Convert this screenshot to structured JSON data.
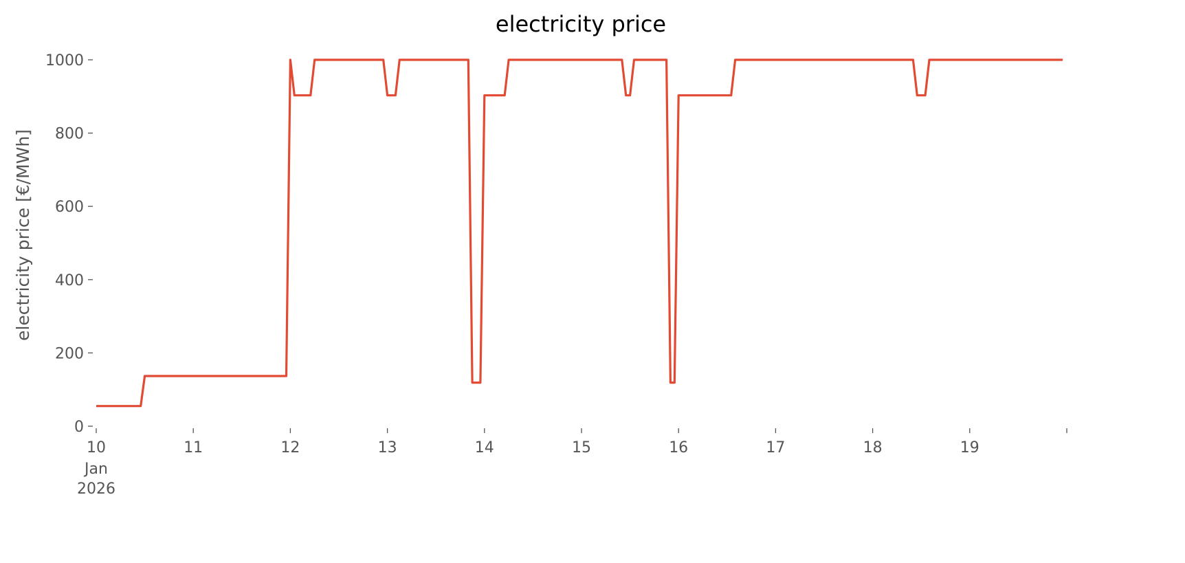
{
  "chart_data": {
    "type": "line",
    "title": "electricity price",
    "xlabel": "",
    "ylabel": "electricity price [€/MWh]",
    "ylim": [
      0,
      1000
    ],
    "xlim": [
      "2026-01-10T00:00",
      "2026-01-20T00:00"
    ],
    "grid": false,
    "line_color": "#E24A33",
    "y_ticks": [
      "0",
      "200",
      "400",
      "600",
      "800",
      "1000"
    ],
    "x_ticks": [
      {
        "label": "10",
        "sub": [
          "Jan",
          "2026"
        ]
      },
      {
        "label": "11"
      },
      {
        "label": "12"
      },
      {
        "label": "13"
      },
      {
        "label": "14"
      },
      {
        "label": "15"
      },
      {
        "label": "16"
      },
      {
        "label": "17"
      },
      {
        "label": "18"
      },
      {
        "label": "19"
      },
      {
        "label": ""
      }
    ],
    "series": [
      {
        "points": [
          [
            "2026-01-10T00:00",
            55
          ],
          [
            "2026-01-10T11:00",
            55
          ],
          [
            "2026-01-10T12:00",
            137
          ],
          [
            "2026-01-11T23:00",
            137
          ],
          [
            "2026-01-12T00:00",
            1000
          ],
          [
            "2026-01-12T01:00",
            903
          ],
          [
            "2026-01-12T05:00",
            903
          ],
          [
            "2026-01-12T06:00",
            1000
          ],
          [
            "2026-01-12T23:00",
            1000
          ],
          [
            "2026-01-13T00:00",
            903
          ],
          [
            "2026-01-13T02:00",
            903
          ],
          [
            "2026-01-13T03:00",
            1000
          ],
          [
            "2026-01-13T20:00",
            1000
          ],
          [
            "2026-01-13T21:00",
            119
          ],
          [
            "2026-01-13T23:00",
            119
          ],
          [
            "2026-01-14T00:00",
            903
          ],
          [
            "2026-01-14T05:00",
            903
          ],
          [
            "2026-01-14T06:00",
            1000
          ],
          [
            "2026-01-15T10:00",
            1000
          ],
          [
            "2026-01-15T11:00",
            903
          ],
          [
            "2026-01-15T12:00",
            903
          ],
          [
            "2026-01-15T13:00",
            1000
          ],
          [
            "2026-01-15T21:00",
            1000
          ],
          [
            "2026-01-15T22:00",
            119
          ],
          [
            "2026-01-15T23:00",
            119
          ],
          [
            "2026-01-16T00:00",
            903
          ],
          [
            "2026-01-16T13:00",
            903
          ],
          [
            "2026-01-16T14:00",
            1000
          ],
          [
            "2026-01-18T10:00",
            1000
          ],
          [
            "2026-01-18T11:00",
            903
          ],
          [
            "2026-01-18T13:00",
            903
          ],
          [
            "2026-01-18T14:00",
            1000
          ],
          [
            "2026-01-19T23:00",
            1000
          ]
        ]
      }
    ]
  }
}
